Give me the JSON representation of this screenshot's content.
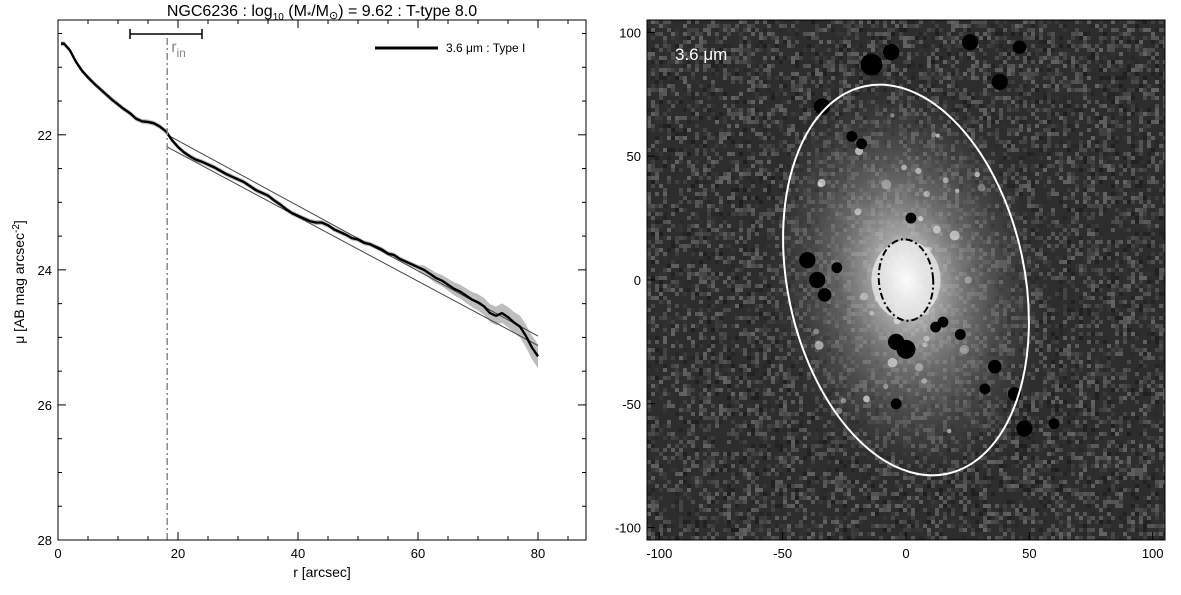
{
  "chart_data": [
    {
      "type": "line",
      "title_main": "NGC6236 : log",
      "title_sub": "10",
      "title_rest_a": " (M",
      "title_rest_b": "/M",
      "title_rest_c": ") = 9.62 : T-type 8.0",
      "title_star": "*",
      "title_sun": "⊙",
      "xlabel": "r [arcsec]",
      "ylabel_a": "μ [AB mag arcsec",
      "ylabel_exp": "-2",
      "ylabel_b": "]",
      "xlim": [
        0,
        88
      ],
      "ylim": [
        28,
        20.3
      ],
      "y_inverted": true,
      "x_ticks": [
        0,
        20,
        40,
        60,
        80
      ],
      "x_tick_labels": [
        "0",
        "20",
        "40",
        "60",
        "80"
      ],
      "y_ticks": [
        22,
        24,
        26,
        28
      ],
      "y_tick_labels": [
        "22",
        "24",
        "26",
        "28"
      ],
      "legend_position": "top-right",
      "legend_label": "3.6 μm : Type I",
      "r_in": 18.2,
      "r_in_label": "r",
      "r_in_sub": "in",
      "r_in_errorbar": [
        12.0,
        24.0
      ],
      "series": [
        {
          "name": "3.6 μm : Type I",
          "x": [
            0.5,
            1,
            2,
            3,
            4,
            5,
            6,
            7,
            8,
            9,
            10,
            11,
            12,
            13,
            14,
            15,
            16,
            17,
            18,
            19,
            20,
            21,
            22,
            23,
            24,
            25,
            26,
            27,
            28,
            29,
            30,
            31,
            32,
            33,
            34,
            35,
            36,
            37,
            38,
            39,
            40,
            41,
            42,
            43,
            44,
            45,
            46,
            47,
            48,
            49,
            50,
            51,
            52,
            53,
            54,
            55,
            56,
            57,
            58,
            59,
            60,
            61,
            62,
            63,
            64,
            65,
            66,
            67,
            68,
            69,
            70,
            71,
            72,
            73,
            74,
            75,
            76,
            77,
            78,
            79,
            80
          ],
          "y": [
            20.65,
            20.65,
            20.75,
            20.92,
            21.05,
            21.15,
            21.24,
            21.32,
            21.4,
            21.48,
            21.55,
            21.62,
            21.68,
            21.76,
            21.8,
            21.81,
            21.83,
            21.88,
            21.95,
            22.08,
            22.18,
            22.26,
            22.32,
            22.37,
            22.4,
            22.44,
            22.48,
            22.53,
            22.58,
            22.62,
            22.66,
            22.7,
            22.76,
            22.82,
            22.86,
            22.9,
            22.97,
            23.03,
            23.1,
            23.16,
            23.2,
            23.24,
            23.28,
            23.3,
            23.3,
            23.34,
            23.4,
            23.44,
            23.48,
            23.53,
            23.55,
            23.6,
            23.62,
            23.66,
            23.7,
            23.76,
            23.78,
            23.84,
            23.88,
            23.92,
            23.96,
            24.0,
            24.06,
            24.12,
            24.16,
            24.22,
            24.28,
            24.32,
            24.38,
            24.44,
            24.48,
            24.54,
            24.64,
            24.68,
            24.64,
            24.7,
            24.78,
            24.84,
            24.98,
            25.15,
            25.28
          ],
          "band": 0.06
        }
      ],
      "fit_lines": [
        {
          "x": [
            18.2,
            80
          ],
          "y": [
            22.0,
            24.98
          ]
        },
        {
          "x": [
            18.2,
            80
          ],
          "y": [
            22.18,
            25.12
          ]
        }
      ]
    },
    {
      "type": "heatmap",
      "image_label": "3.6 μm",
      "xlim": [
        -105,
        105
      ],
      "ylim": [
        -105,
        105
      ],
      "x_ticks": [
        -100,
        -50,
        0,
        50,
        100
      ],
      "x_tick_labels": [
        "-100",
        "-50",
        "0",
        "50",
        "100"
      ],
      "y_ticks": [
        -100,
        -50,
        0,
        50,
        100
      ],
      "y_tick_labels": [
        "-100",
        "-50",
        "0",
        "50",
        "100"
      ],
      "outer_ellipse": {
        "cx": 0,
        "cy": 0,
        "rx": 48,
        "ry": 80,
        "rotation_deg": 12,
        "color": "#ffffff"
      },
      "inner_ellipse": {
        "cx": 0,
        "cy": 0,
        "rx": 11,
        "ry": 16.5,
        "rotation_deg": 5,
        "color": "#000000",
        "style": "dash-dot"
      },
      "masked_sources": [
        [
          -14,
          87,
          4
        ],
        [
          -6,
          92,
          3
        ],
        [
          -34,
          70,
          3
        ],
        [
          26,
          96,
          3
        ],
        [
          38,
          80,
          3
        ],
        [
          46,
          94,
          2.5
        ],
        [
          -18,
          55,
          2
        ],
        [
          2,
          25,
          2
        ],
        [
          -40,
          8,
          3
        ],
        [
          -36,
          0,
          3
        ],
        [
          -28,
          5,
          2
        ],
        [
          -33,
          -6,
          2.5
        ],
        [
          -4,
          -25,
          3
        ],
        [
          0,
          -28,
          3.5
        ],
        [
          15,
          -17,
          2
        ],
        [
          12,
          -19,
          2
        ],
        [
          22,
          -22,
          2
        ],
        [
          36,
          -35,
          2.5
        ],
        [
          -4,
          -50,
          2
        ],
        [
          32,
          -44,
          2
        ],
        [
          44,
          -46,
          2.5
        ],
        [
          48,
          -60,
          3
        ],
        [
          60,
          -58,
          2
        ],
        [
          -22,
          58,
          2
        ]
      ]
    }
  ]
}
